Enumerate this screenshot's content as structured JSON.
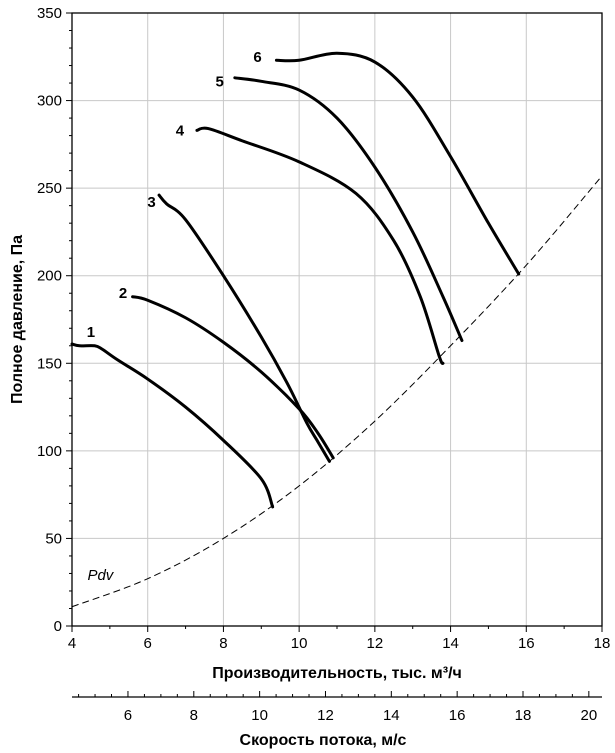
{
  "chart_data": {
    "type": "line",
    "xlabel": "Производительность, тыс. м³/ч",
    "x2label": "Скорость потока, м/с",
    "ylabel": "Полное давление, Па",
    "xlim": [
      4,
      18
    ],
    "ylim": [
      0,
      350
    ],
    "x2lim": [
      4.3,
      20.4
    ],
    "grid": true,
    "x_ticks": [
      "4",
      "6",
      "8",
      "10",
      "12",
      "14",
      "16",
      "18"
    ],
    "y_ticks": [
      "0",
      "50",
      "100",
      "150",
      "200",
      "250",
      "300",
      "350"
    ],
    "x2_ticks": [
      "6",
      "8",
      "10",
      "12",
      "14",
      "16",
      "18",
      "20"
    ],
    "series": [
      {
        "name": "1",
        "points": [
          [
            4.0,
            161
          ],
          [
            4.2,
            160
          ],
          [
            4.6,
            160
          ],
          [
            4.8,
            158
          ],
          [
            5.2,
            152
          ],
          [
            6.0,
            141
          ],
          [
            7.0,
            125
          ],
          [
            8.0,
            106
          ],
          [
            9.0,
            84
          ],
          [
            9.3,
            68
          ]
        ]
      },
      {
        "name": "2",
        "points": [
          [
            5.6,
            188
          ],
          [
            6.0,
            186
          ],
          [
            7.0,
            176
          ],
          [
            8.0,
            162
          ],
          [
            9.0,
            145
          ],
          [
            10.0,
            124
          ],
          [
            10.5,
            110
          ],
          [
            10.9,
            96
          ]
        ]
      },
      {
        "name": "3",
        "points": [
          [
            6.3,
            246
          ],
          [
            6.5,
            241
          ],
          [
            7.0,
            232
          ],
          [
            8.0,
            200
          ],
          [
            9.0,
            165
          ],
          [
            9.7,
            138
          ],
          [
            10.2,
            116
          ],
          [
            10.5,
            105
          ],
          [
            10.8,
            94
          ]
        ]
      },
      {
        "name": "4",
        "points": [
          [
            7.3,
            283
          ],
          [
            7.6,
            284
          ],
          [
            8.5,
            277
          ],
          [
            10.0,
            265
          ],
          [
            11.5,
            247
          ],
          [
            12.5,
            220
          ],
          [
            13.2,
            188
          ],
          [
            13.7,
            154
          ],
          [
            13.8,
            150
          ]
        ]
      },
      {
        "name": "5",
        "points": [
          [
            8.3,
            313
          ],
          [
            9.0,
            311
          ],
          [
            10.0,
            306
          ],
          [
            11.0,
            290
          ],
          [
            12.0,
            262
          ],
          [
            13.0,
            225
          ],
          [
            13.8,
            188
          ],
          [
            14.3,
            163
          ]
        ]
      },
      {
        "name": "6",
        "points": [
          [
            9.4,
            323
          ],
          [
            10.0,
            323
          ],
          [
            11.0,
            327
          ],
          [
            12.0,
            322
          ],
          [
            13.0,
            302
          ],
          [
            14.0,
            268
          ],
          [
            15.0,
            230
          ],
          [
            15.8,
            201
          ]
        ]
      },
      {
        "name": "Pdv",
        "dashed": true,
        "points": [
          [
            4.0,
            11
          ],
          [
            6.0,
            27
          ],
          [
            8.0,
            50
          ],
          [
            10.0,
            80
          ],
          [
            12.0,
            117
          ],
          [
            14.0,
            160
          ],
          [
            16.0,
            206
          ],
          [
            18.0,
            257
          ]
        ]
      }
    ],
    "labels": [
      {
        "text": "1",
        "x": 4.5,
        "y": 168
      },
      {
        "text": "2",
        "x": 5.35,
        "y": 190
      },
      {
        "text": "3",
        "x": 6.1,
        "y": 242
      },
      {
        "text": "4",
        "x": 6.85,
        "y": 283
      },
      {
        "text": "5",
        "x": 7.9,
        "y": 311
      },
      {
        "text": "6",
        "x": 8.9,
        "y": 325
      },
      {
        "text": "Pdv",
        "x": 4.75,
        "y": 29,
        "italic": true
      }
    ]
  }
}
